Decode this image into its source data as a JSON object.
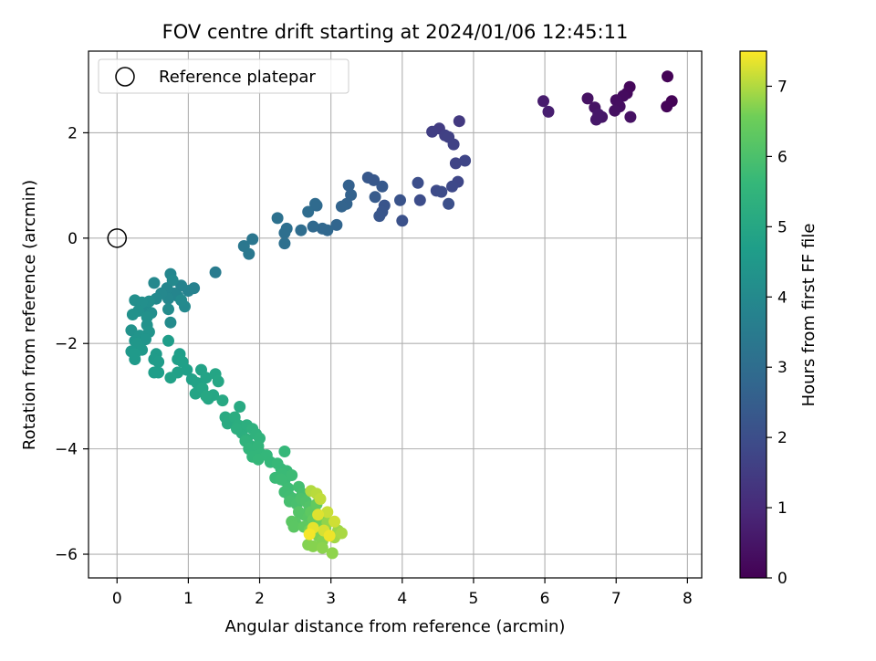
{
  "chart_data": {
    "type": "scatter",
    "title": "FOV centre drift starting at 2024/01/06 12:45:11",
    "xlabel": "Angular distance from reference (arcmin)",
    "ylabel": "Rotation from reference (arcmin)",
    "xlim": [
      -0.4,
      8.2
    ],
    "ylim": [
      -6.45,
      3.55
    ],
    "xticks": [
      0,
      1,
      2,
      3,
      4,
      5,
      6,
      7,
      8
    ],
    "yticks": [
      -6,
      -4,
      -2,
      0,
      2
    ],
    "grid": true,
    "legend": {
      "position": "top-left",
      "entries": [
        "Reference platepar"
      ]
    },
    "reference_point": {
      "x": 0,
      "y": 0
    },
    "colorbar": {
      "label": "Hours from first FF file",
      "colormap": "viridis",
      "range": [
        0,
        7.5
      ],
      "ticks": [
        0,
        1,
        2,
        3,
        4,
        5,
        6,
        7
      ]
    },
    "series": [
      {
        "points": [
          [
            7.72,
            3.07,
            0.05
          ],
          [
            7.78,
            2.6,
            0.05
          ],
          [
            7.71,
            2.5,
            0.08
          ],
          [
            7.19,
            2.87,
            0.15
          ],
          [
            7.15,
            2.75,
            0.2
          ],
          [
            7.1,
            2.7,
            0.25
          ],
          [
            7.0,
            2.62,
            0.3
          ],
          [
            7.05,
            2.5,
            0.32
          ],
          [
            6.98,
            2.42,
            0.35
          ],
          [
            7.2,
            2.3,
            0.38
          ],
          [
            6.6,
            2.65,
            0.4
          ],
          [
            6.7,
            2.48,
            0.45
          ],
          [
            6.8,
            2.3,
            0.5
          ],
          [
            6.72,
            2.25,
            0.55
          ],
          [
            6.75,
            2.35,
            0.55
          ],
          [
            5.98,
            2.6,
            0.65
          ],
          [
            6.05,
            2.4,
            0.7
          ],
          [
            4.8,
            2.22,
            1.4
          ],
          [
            4.52,
            2.08,
            1.5
          ],
          [
            4.42,
            2.02,
            1.55
          ],
          [
            4.6,
            1.95,
            1.6
          ],
          [
            4.65,
            1.92,
            1.62
          ],
          [
            4.72,
            1.78,
            1.65
          ],
          [
            4.75,
            1.42,
            1.7
          ],
          [
            4.88,
            1.47,
            1.75
          ],
          [
            4.78,
            1.07,
            1.8
          ],
          [
            4.7,
            0.98,
            1.85
          ],
          [
            4.48,
            0.9,
            1.9
          ],
          [
            4.55,
            0.88,
            1.95
          ],
          [
            4.25,
            0.72,
            1.98
          ],
          [
            4.22,
            1.05,
            2.0
          ],
          [
            4.65,
            0.65,
            2.05
          ],
          [
            4.0,
            0.33,
            2.1
          ],
          [
            3.97,
            0.72,
            2.15
          ],
          [
            3.75,
            0.62,
            2.2
          ],
          [
            3.72,
            0.5,
            2.22
          ],
          [
            3.68,
            0.42,
            2.25
          ],
          [
            3.6,
            1.1,
            2.3
          ],
          [
            3.52,
            1.15,
            2.32
          ],
          [
            3.72,
            0.98,
            2.35
          ],
          [
            3.62,
            0.78,
            2.4
          ],
          [
            3.25,
            1.0,
            2.6
          ],
          [
            3.28,
            0.82,
            2.62
          ],
          [
            3.22,
            0.65,
            2.65
          ],
          [
            3.15,
            0.6,
            2.7
          ],
          [
            3.08,
            0.25,
            2.75
          ],
          [
            2.95,
            0.15,
            2.8
          ],
          [
            2.88,
            0.18,
            2.82
          ],
          [
            2.75,
            0.22,
            2.85
          ],
          [
            2.8,
            0.62,
            2.9
          ],
          [
            2.78,
            0.65,
            2.92
          ],
          [
            2.68,
            0.5,
            2.95
          ],
          [
            2.58,
            0.15,
            3.0
          ],
          [
            2.38,
            0.18,
            3.05
          ],
          [
            2.35,
            0.1,
            3.08
          ],
          [
            2.35,
            -0.1,
            3.1
          ],
          [
            2.25,
            0.38,
            3.15
          ],
          [
            1.9,
            -0.02,
            3.3
          ],
          [
            1.78,
            -0.15,
            3.35
          ],
          [
            1.85,
            -0.3,
            3.38
          ],
          [
            1.38,
            -0.65,
            3.5
          ],
          [
            1.08,
            -0.95,
            3.7
          ],
          [
            1.0,
            -1.0,
            3.75
          ],
          [
            0.9,
            -0.9,
            3.8
          ],
          [
            0.85,
            -1.1,
            3.85
          ],
          [
            0.8,
            -1.05,
            3.85
          ],
          [
            0.75,
            -0.68,
            3.9
          ],
          [
            0.7,
            -0.95,
            3.9
          ],
          [
            0.72,
            -1.15,
            3.92
          ],
          [
            0.62,
            -1.05,
            3.95
          ],
          [
            0.52,
            -0.85,
            3.95
          ],
          [
            0.55,
            -1.15,
            3.98
          ],
          [
            0.78,
            -0.8,
            4.0
          ],
          [
            0.95,
            -1.3,
            4.0
          ],
          [
            0.9,
            -1.18,
            4.02
          ],
          [
            0.72,
            -1.35,
            4.05
          ],
          [
            0.75,
            -1.6,
            4.05
          ],
          [
            0.4,
            -1.3,
            4.1
          ],
          [
            0.45,
            -1.2,
            4.15
          ],
          [
            0.48,
            -1.42,
            4.15
          ],
          [
            0.25,
            -1.18,
            4.2
          ],
          [
            0.35,
            -1.22,
            4.2
          ],
          [
            0.3,
            -1.38,
            4.22
          ],
          [
            0.22,
            -1.45,
            4.25
          ],
          [
            0.42,
            -1.5,
            4.25
          ],
          [
            0.42,
            -1.65,
            4.3
          ],
          [
            0.2,
            -1.75,
            4.3
          ],
          [
            0.45,
            -1.78,
            4.35
          ],
          [
            0.32,
            -1.85,
            4.35
          ],
          [
            0.25,
            -1.95,
            4.4
          ],
          [
            0.4,
            -1.92,
            4.4
          ],
          [
            0.28,
            -2.0,
            4.45
          ],
          [
            0.2,
            -2.15,
            4.5
          ],
          [
            0.35,
            -2.12,
            4.5
          ],
          [
            0.25,
            -2.3,
            4.55
          ],
          [
            0.25,
            -2.2,
            4.55
          ],
          [
            0.55,
            -2.2,
            4.6
          ],
          [
            0.52,
            -2.3,
            4.6
          ],
          [
            0.58,
            -2.35,
            4.62
          ],
          [
            0.72,
            -1.95,
            4.65
          ],
          [
            0.58,
            -2.55,
            4.68
          ],
          [
            0.52,
            -2.55,
            4.7
          ],
          [
            0.88,
            -2.2,
            4.7
          ],
          [
            0.85,
            -2.3,
            4.72
          ],
          [
            0.92,
            -2.35,
            4.75
          ],
          [
            0.98,
            -2.5,
            4.75
          ],
          [
            0.85,
            -2.55,
            4.78
          ],
          [
            0.75,
            -2.65,
            4.8
          ],
          [
            1.05,
            -2.68,
            4.8
          ],
          [
            1.18,
            -2.5,
            4.85
          ],
          [
            1.12,
            -2.75,
            4.85
          ],
          [
            1.25,
            -2.65,
            4.88
          ],
          [
            1.1,
            -2.95,
            4.9
          ],
          [
            1.15,
            -2.9,
            4.92
          ],
          [
            1.2,
            -2.85,
            4.95
          ],
          [
            1.28,
            -3.05,
            4.95
          ],
          [
            1.38,
            -2.58,
            4.95
          ],
          [
            1.42,
            -2.72,
            5.0
          ],
          [
            1.35,
            -2.98,
            5.0
          ],
          [
            1.25,
            -3.0,
            5.02
          ],
          [
            1.48,
            -3.08,
            5.05
          ],
          [
            1.72,
            -3.2,
            5.1
          ],
          [
            1.52,
            -3.4,
            5.1
          ],
          [
            1.58,
            -3.45,
            5.15
          ],
          [
            1.55,
            -3.52,
            5.15
          ],
          [
            1.65,
            -3.4,
            5.2
          ],
          [
            1.7,
            -3.55,
            5.25
          ],
          [
            1.75,
            -3.7,
            5.28
          ],
          [
            1.68,
            -3.62,
            5.3
          ],
          [
            1.82,
            -3.55,
            5.3
          ],
          [
            1.9,
            -3.62,
            5.35
          ],
          [
            1.82,
            -3.82,
            5.38
          ],
          [
            1.95,
            -3.72,
            5.4
          ],
          [
            1.88,
            -3.95,
            5.42
          ],
          [
            1.8,
            -3.85,
            5.45
          ],
          [
            2.0,
            -3.8,
            5.45
          ],
          [
            1.92,
            -4.05,
            5.5
          ],
          [
            1.85,
            -4.0,
            5.5
          ],
          [
            1.98,
            -3.95,
            5.52
          ],
          [
            1.9,
            -4.15,
            5.55
          ],
          [
            2.02,
            -4.1,
            5.55
          ],
          [
            2.1,
            -4.12,
            5.58
          ],
          [
            1.98,
            -4.2,
            5.6
          ],
          [
            2.15,
            -4.25,
            5.6
          ],
          [
            2.35,
            -4.05,
            5.62
          ],
          [
            2.25,
            -4.28,
            5.65
          ],
          [
            2.3,
            -4.38,
            5.65
          ],
          [
            2.38,
            -4.42,
            5.68
          ],
          [
            2.22,
            -4.55,
            5.7
          ],
          [
            2.35,
            -4.6,
            5.72
          ],
          [
            2.32,
            -4.48,
            5.72
          ],
          [
            2.45,
            -4.5,
            5.75
          ],
          [
            2.3,
            -4.58,
            5.75
          ],
          [
            2.4,
            -4.75,
            5.78
          ],
          [
            2.35,
            -4.82,
            5.8
          ],
          [
            2.42,
            -4.9,
            5.82
          ],
          [
            2.55,
            -4.72,
            5.85
          ],
          [
            2.48,
            -4.95,
            5.88
          ],
          [
            2.6,
            -4.85,
            5.9
          ],
          [
            2.42,
            -5.0,
            5.92
          ],
          [
            2.52,
            -5.05,
            5.95
          ],
          [
            2.58,
            -4.95,
            6.0
          ],
          [
            2.65,
            -5.0,
            6.05
          ],
          [
            2.7,
            -5.1,
            6.1
          ],
          [
            2.62,
            -5.25,
            6.15
          ],
          [
            2.55,
            -5.2,
            6.15
          ],
          [
            2.68,
            -5.3,
            6.2
          ],
          [
            2.5,
            -5.4,
            6.2
          ],
          [
            2.45,
            -5.38,
            6.25
          ],
          [
            2.48,
            -5.48,
            6.25
          ],
          [
            2.62,
            -5.48,
            6.3
          ],
          [
            2.72,
            -5.2,
            6.3
          ],
          [
            2.8,
            -5.05,
            6.35
          ],
          [
            2.75,
            -5.35,
            6.4
          ],
          [
            2.82,
            -5.25,
            6.45
          ],
          [
            2.9,
            -5.3,
            6.5
          ],
          [
            2.85,
            -5.45,
            6.55
          ],
          [
            2.7,
            -5.55,
            6.55
          ],
          [
            2.78,
            -5.6,
            6.6
          ],
          [
            2.92,
            -5.5,
            6.62
          ],
          [
            2.82,
            -5.65,
            6.65
          ],
          [
            2.88,
            -5.75,
            6.7
          ],
          [
            2.68,
            -5.82,
            6.7
          ],
          [
            2.75,
            -5.85,
            6.72
          ],
          [
            2.88,
            -5.88,
            6.75
          ],
          [
            3.02,
            -5.98,
            6.78
          ],
          [
            2.95,
            -5.4,
            6.8
          ],
          [
            3.1,
            -5.55,
            6.85
          ],
          [
            3.05,
            -5.68,
            6.9
          ],
          [
            3.15,
            -5.6,
            6.95
          ],
          [
            2.72,
            -4.8,
            7.0
          ],
          [
            2.8,
            -4.85,
            7.05
          ],
          [
            2.85,
            -4.95,
            7.1
          ],
          [
            2.95,
            -5.2,
            7.15
          ],
          [
            3.05,
            -5.38,
            7.2
          ],
          [
            2.9,
            -5.55,
            7.25
          ],
          [
            2.82,
            -5.25,
            7.3
          ],
          [
            2.75,
            -5.5,
            7.35
          ],
          [
            2.98,
            -5.65,
            7.4
          ],
          [
            2.7,
            -5.62,
            7.45
          ]
        ]
      }
    ]
  }
}
